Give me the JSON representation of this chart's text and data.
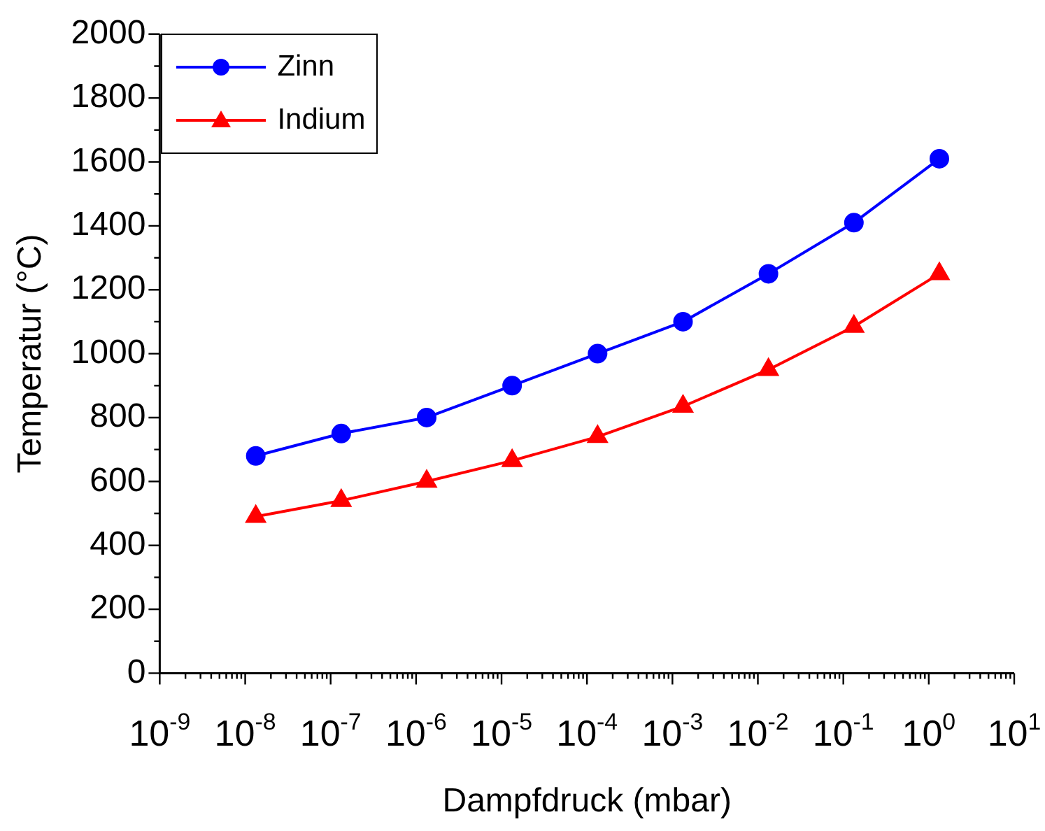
{
  "chart_data": {
    "type": "line",
    "xlabel": "Dampfdruck (mbar)",
    "ylabel": "Temperatur (°C)",
    "x": [
      1.33e-08,
      1.33e-07,
      1.33e-06,
      1.33e-05,
      0.000133,
      0.00133,
      0.0133,
      0.133,
      1.33
    ],
    "series": [
      {
        "name": "Zinn",
        "color": "#0000ff",
        "marker": "circle",
        "values": [
          680,
          750,
          800,
          900,
          1000,
          1100,
          1250,
          1410,
          1610
        ]
      },
      {
        "name": "Indium",
        "color": "#ff0000",
        "marker": "triangle",
        "values": [
          490,
          540,
          600,
          665,
          740,
          835,
          950,
          1085,
          1250
        ]
      }
    ],
    "log": "x",
    "xlim": [
      1e-09,
      10
    ],
    "xticks": [
      {
        "value": 1e-09,
        "label": "10$^{-9}$"
      },
      {
        "value": 1e-08,
        "label": "10$^{-8}$"
      },
      {
        "value": 1e-07,
        "label": "10$^{-7}$"
      },
      {
        "value": 1e-06,
        "label": "10$^{-6}$"
      },
      {
        "value": 1e-05,
        "label": "10$^{-5}$"
      },
      {
        "value": 0.0001,
        "label": "10$^{-4}$"
      },
      {
        "value": 0.001,
        "label": "10$^{-3}$"
      },
      {
        "value": 0.01,
        "label": "10$^{-2}$"
      },
      {
        "value": 0.1,
        "label": "10$^{-1}$"
      },
      {
        "value": 1,
        "label": "10$^{0}$"
      },
      {
        "value": 10,
        "label": "10$^{1}$"
      }
    ],
    "ylim": [
      0,
      2000
    ],
    "yticks": [
      0,
      200,
      400,
      600,
      800,
      1000,
      1200,
      1400,
      1600,
      1800,
      2000
    ],
    "grid": false,
    "legend": "top left",
    "line_style": "solid"
  }
}
